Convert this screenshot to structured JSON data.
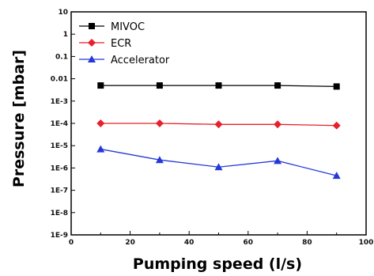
{
  "chart_data": {
    "type": "line",
    "xlabel": "Pumping speed (l/s)",
    "ylabel": "Pressure [mbar]",
    "xlim": [
      0,
      100
    ],
    "ylim": [
      1e-09,
      10
    ],
    "yscale": "log",
    "x_ticks": [
      0,
      20,
      40,
      60,
      80,
      100
    ],
    "x_tick_labels": [
      "0",
      "20",
      "40",
      "60",
      "80",
      "100"
    ],
    "y_ticks": [
      10,
      1,
      0.1,
      0.01,
      0.001,
      0.0001,
      1e-05,
      1e-06,
      1e-07,
      1e-08,
      1e-09
    ],
    "y_tick_labels": [
      "10",
      "1",
      "0.1",
      "0.01",
      "1E-3",
      "1E-4",
      "1E-5",
      "1E-6",
      "1E-7",
      "1E-8",
      "1E-9"
    ],
    "grid": false,
    "legend_position": "top-left",
    "x": [
      10,
      30,
      50,
      70,
      90
    ],
    "series": [
      {
        "name": "MIVOC",
        "color": "#000000",
        "marker": "square",
        "values": [
          0.005,
          0.005,
          0.005,
          0.005,
          0.0045
        ]
      },
      {
        "name": "ECR",
        "color": "#e8202a",
        "marker": "diamond",
        "values": [
          0.0001,
          0.0001,
          9e-05,
          9e-05,
          8e-05
        ]
      },
      {
        "name": "Accelerator",
        "color": "#2438d8",
        "marker": "triangle",
        "values": [
          7e-06,
          2.3e-06,
          1.1e-06,
          2.1e-06,
          4.5e-07
        ]
      }
    ]
  }
}
